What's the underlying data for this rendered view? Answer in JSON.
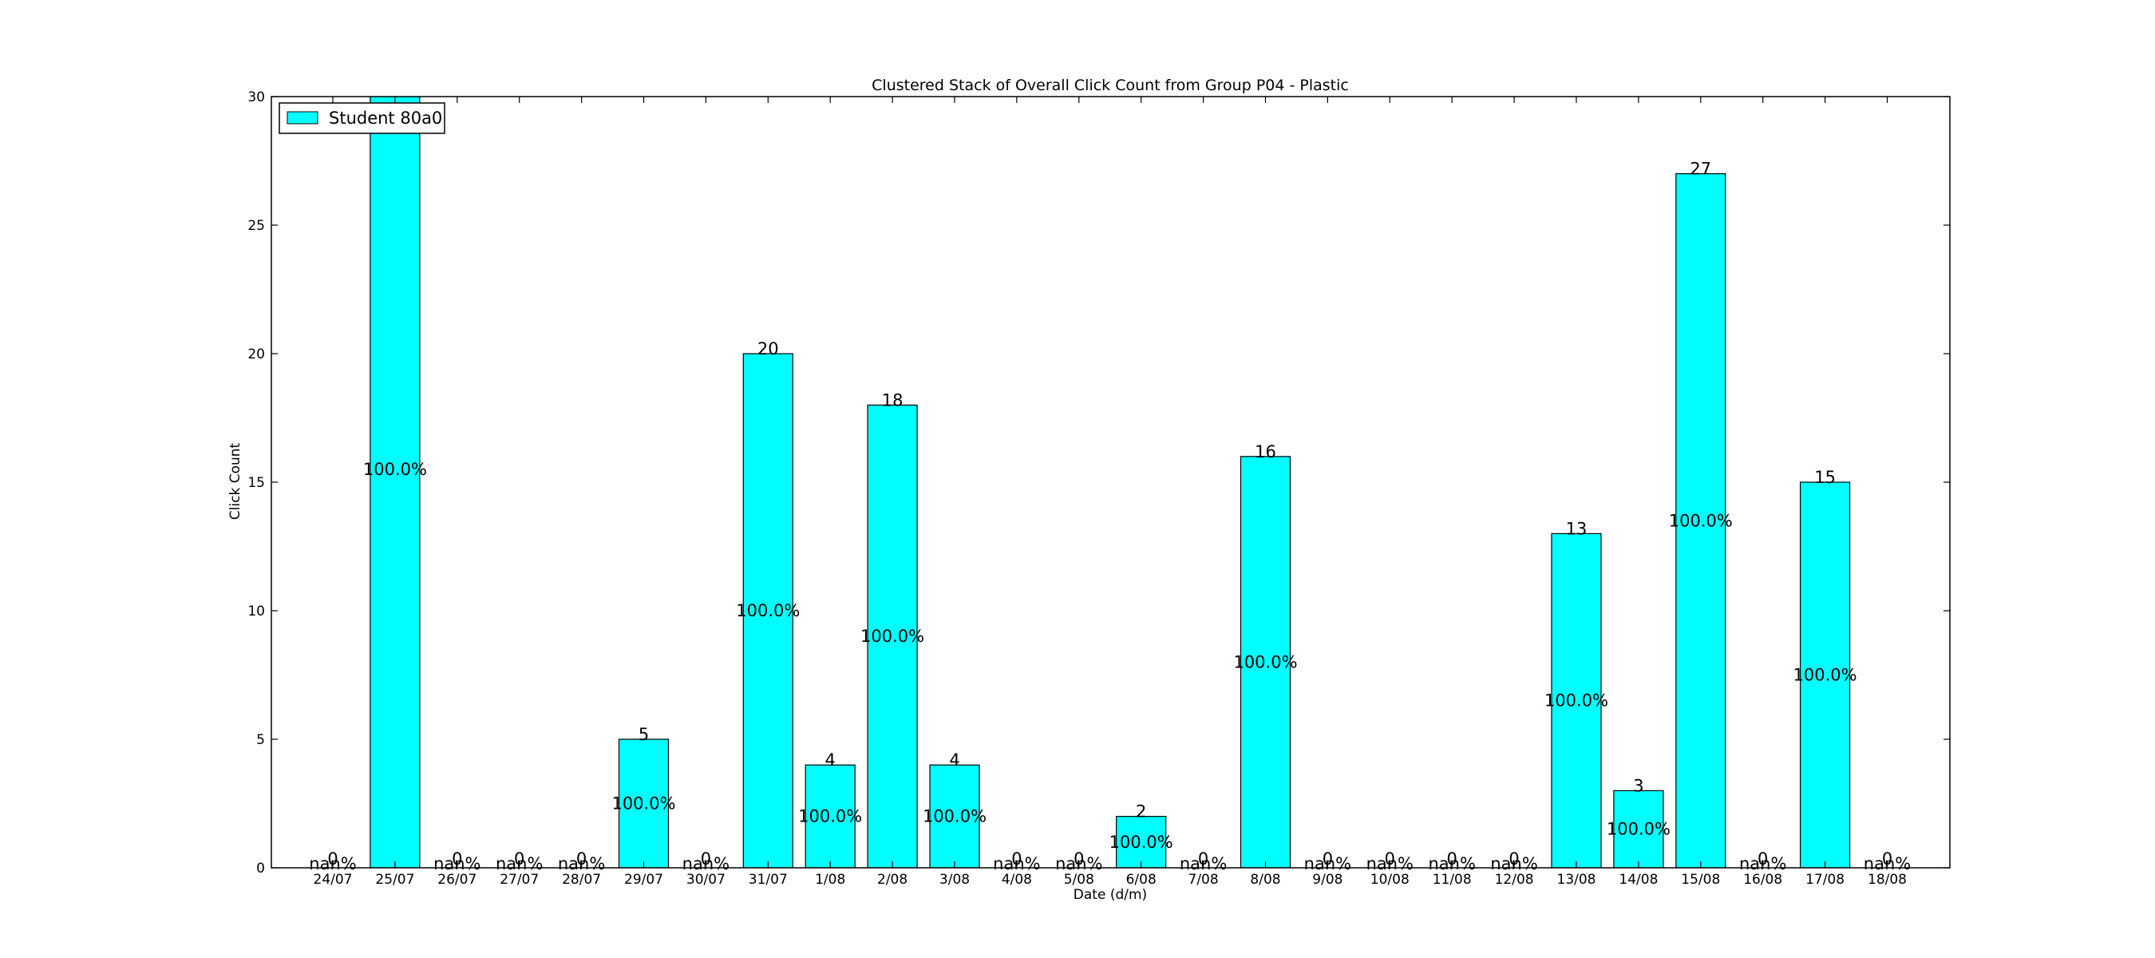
{
  "chart_data": {
    "type": "bar",
    "title": "Clustered Stack of Overall Click Count from Group P04 - Plastic",
    "xlabel": "Date (d/m)",
    "ylabel": "Click Count",
    "ylim": [
      0,
      30
    ],
    "yticks": [
      0,
      5,
      10,
      15,
      20,
      25,
      30
    ],
    "legend_position": "top-left",
    "categories": [
      "24/07",
      "25/07",
      "26/07",
      "27/07",
      "28/07",
      "29/07",
      "30/07",
      "31/07",
      "1/08",
      "2/08",
      "3/08",
      "4/08",
      "5/08",
      "6/08",
      "7/08",
      "8/08",
      "9/08",
      "10/08",
      "11/08",
      "12/08",
      "13/08",
      "14/08",
      "15/08",
      "16/08",
      "17/08",
      "18/08"
    ],
    "series": [
      {
        "name": "Student 80a0",
        "color": "#00ffff",
        "values": [
          0,
          31,
          0,
          0,
          0,
          5,
          0,
          20,
          4,
          18,
          4,
          0,
          0,
          2,
          0,
          16,
          0,
          0,
          0,
          0,
          13,
          3,
          27,
          0,
          15,
          0
        ],
        "top_labels": [
          "0",
          "",
          "0",
          "0",
          "0",
          "5",
          "0",
          "20",
          "4",
          "18",
          "4",
          "0",
          "0",
          "2",
          "0",
          "16",
          "0",
          "0",
          "0",
          "0",
          "13",
          "3",
          "27",
          "0",
          "15",
          "0"
        ],
        "percent_labels": [
          "nan%",
          "100.0%",
          "nan%",
          "nan%",
          "nan%",
          "100.0%",
          "nan%",
          "100.0%",
          "100.0%",
          "100.0%",
          "100.0%",
          "nan%",
          "nan%",
          "100.0%",
          "nan%",
          "100.0%",
          "nan%",
          "nan%",
          "nan%",
          "nan%",
          "100.0%",
          "100.0%",
          "100.0%",
          "nan%",
          "100.0%",
          "nan%"
        ]
      }
    ]
  }
}
